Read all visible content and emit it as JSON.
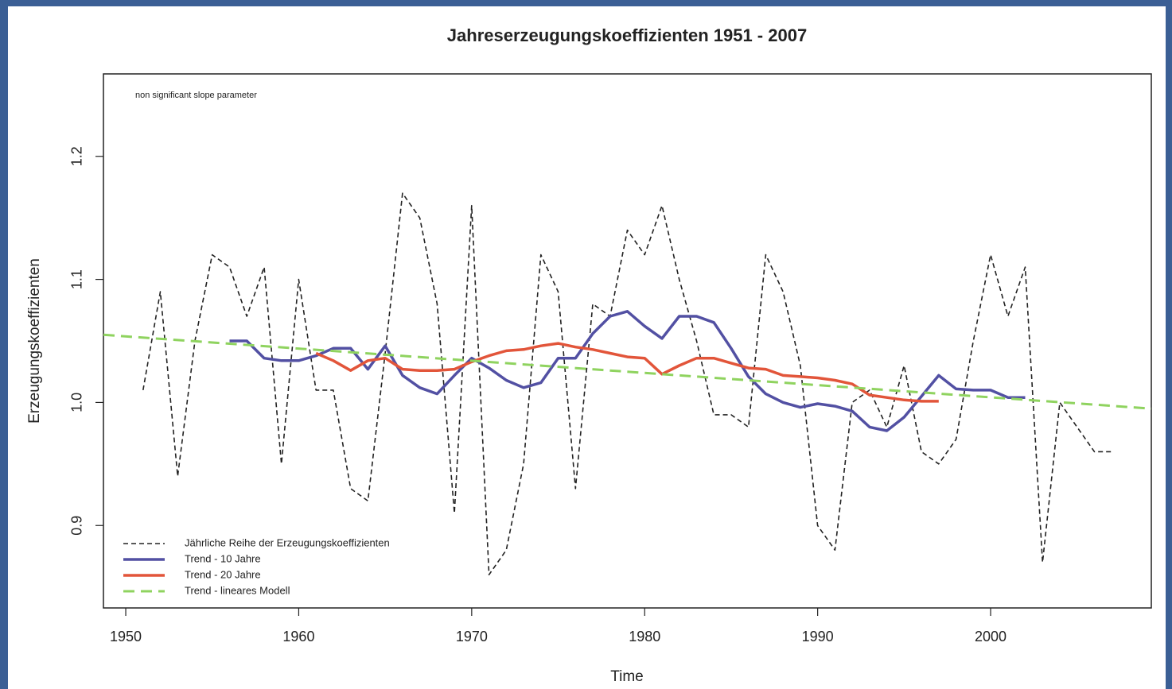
{
  "chart_data": {
    "type": "line",
    "title": "Jahreserzeugungskoeffizienten 1951 - 2007",
    "annotation": "non significant slope parameter",
    "x_label": "Time",
    "y_label": "Erzeugungskoeffizienten",
    "xlim": [
      1948.71,
      2009.29
    ],
    "ylim": [
      0.833,
      1.267
    ],
    "xticks": [
      1950,
      1960,
      1970,
      1980,
      1990,
      2000
    ],
    "yticks": [
      0.9,
      {
        "value": 1,
        "label": "1.0"
      },
      1.1,
      1.2
    ],
    "legend": "bottom-left",
    "x": [
      1951,
      1952,
      1953,
      1954,
      1955,
      1956,
      1957,
      1958,
      1959,
      1960,
      1961,
      1962,
      1963,
      1964,
      1965,
      1966,
      1967,
      1968,
      1969,
      1970,
      1971,
      1972,
      1973,
      1974,
      1975,
      1976,
      1977,
      1978,
      1979,
      1980,
      1981,
      1982,
      1983,
      1984,
      1985,
      1986,
      1987,
      1988,
      1989,
      1990,
      1991,
      1992,
      1993,
      1994,
      1995,
      1996,
      1997,
      1998,
      1999,
      2000,
      2001,
      2002,
      2003,
      2004,
      2005,
      2006,
      2007
    ],
    "series": [
      {
        "name": "Jährliche Reihe der Erzeugungskoeffizienten",
        "color": "#222222",
        "linestyle": "dashed",
        "values": [
          1.01,
          1.09,
          0.94,
          1.05,
          1.12,
          1.11,
          1.07,
          1.11,
          0.95,
          1.1,
          1.01,
          1.01,
          0.93,
          0.92,
          1.04,
          1.17,
          1.15,
          1.08,
          0.91,
          1.16,
          0.86,
          0.88,
          0.95,
          1.12,
          1.09,
          0.93,
          1.08,
          1.07,
          1.14,
          1.12,
          1.16,
          1.1,
          1.05,
          0.99,
          0.99,
          0.98,
          1.12,
          1.09,
          1.03,
          0.9,
          0.88,
          1.0,
          1.01,
          0.98,
          1.03,
          0.96,
          0.95,
          0.97,
          1.05,
          1.12,
          1.07,
          1.11,
          0.87,
          1.0,
          0.98,
          0.96,
          0.96
        ]
      },
      {
        "name": "Trend - 10 Jahre",
        "color": "#5250a3",
        "linestyle": "solid",
        "values": [
          null,
          null,
          null,
          null,
          null,
          1.05,
          1.05,
          1.036,
          1.034,
          1.034,
          1.038,
          1.044,
          1.044,
          1.027,
          1.046,
          1.022,
          1.012,
          1.007,
          1.022,
          1.036,
          1.028,
          1.018,
          1.012,
          1.016,
          1.036,
          1.036,
          1.056,
          1.07,
          1.074,
          1.062,
          1.052,
          1.07,
          1.07,
          1.065,
          1.044,
          1.021,
          1.007,
          1.0,
          0.996,
          0.999,
          0.997,
          0.993,
          0.98,
          0.977,
          0.988,
          1.005,
          1.022,
          1.011,
          1.01,
          1.01,
          1.004,
          1.004,
          null,
          null,
          null,
          null,
          null
        ]
      },
      {
        "name": "Trend - 20 Jahre",
        "color": "#e2553a",
        "linestyle": "solid",
        "values": [
          null,
          null,
          null,
          null,
          null,
          null,
          null,
          null,
          null,
          null,
          1.04,
          1.034,
          1.026,
          1.034,
          1.036,
          1.027,
          1.026,
          1.026,
          1.027,
          1.033,
          1.038,
          1.042,
          1.043,
          1.046,
          1.048,
          1.045,
          1.043,
          1.04,
          1.037,
          1.036,
          1.023,
          1.03,
          1.036,
          1.036,
          1.032,
          1.028,
          1.027,
          1.022,
          1.021,
          1.02,
          1.018,
          1.015,
          1.006,
          1.004,
          1.002,
          1.001,
          1.001,
          null,
          null,
          null,
          null,
          null,
          null,
          null,
          null,
          null,
          null
        ]
      },
      {
        "name": "Trend - lineares Modell",
        "color": "#8fd35f",
        "linestyle": "dashed",
        "x": [
          1948.71,
          2009.29
        ],
        "values": [
          1.055,
          0.995
        ]
      }
    ]
  }
}
